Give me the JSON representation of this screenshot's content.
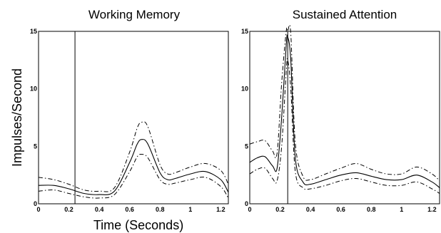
{
  "chart_data": [
    {
      "type": "line",
      "title": "Working Memory",
      "xlabel": "Time (Seconds)",
      "ylabel": "Impulses/Second",
      "xlim": [
        0,
        1.25
      ],
      "ylim": [
        0,
        15
      ],
      "x_ticks": [
        "0",
        "0.2",
        "0.4",
        "0.6",
        "0.8",
        "1",
        "1.2"
      ],
      "y_ticks": [
        "0",
        "5",
        "10",
        "15"
      ],
      "event_marker_x": 0.24,
      "series": [
        {
          "role": "mean",
          "x": [
            0,
            0.1,
            0.2,
            0.3,
            0.4,
            0.5,
            0.6,
            0.65,
            0.68,
            0.72,
            0.8,
            0.85,
            0.9,
            1.0,
            1.1,
            1.2,
            1.25
          ],
          "y": [
            1.6,
            1.6,
            1.3,
            0.9,
            0.8,
            1.1,
            3.6,
            5.2,
            5.6,
            5.2,
            2.7,
            2.1,
            2.2,
            2.6,
            2.8,
            2.1,
            1.0
          ]
        },
        {
          "role": "upper",
          "x": [
            0,
            0.1,
            0.2,
            0.3,
            0.4,
            0.5,
            0.6,
            0.65,
            0.68,
            0.72,
            0.8,
            0.85,
            0.9,
            1.0,
            1.1,
            1.2,
            1.25
          ],
          "y": [
            2.3,
            2.1,
            1.7,
            1.2,
            1.1,
            1.4,
            4.5,
            6.6,
            7.1,
            6.7,
            3.4,
            2.6,
            2.7,
            3.2,
            3.5,
            2.9,
            1.7
          ]
        },
        {
          "role": "lower",
          "x": [
            0,
            0.1,
            0.2,
            0.3,
            0.4,
            0.5,
            0.6,
            0.65,
            0.68,
            0.72,
            0.8,
            0.85,
            0.9,
            1.0,
            1.1,
            1.2,
            1.25
          ],
          "y": [
            1.1,
            1.2,
            0.9,
            0.6,
            0.5,
            0.8,
            2.8,
            4.1,
            4.3,
            4.0,
            2.1,
            1.7,
            1.8,
            2.1,
            2.3,
            1.5,
            0.5
          ]
        }
      ]
    },
    {
      "type": "line",
      "title": "Sustained Attention",
      "xlabel": "",
      "ylabel": "",
      "xlim": [
        0,
        1.25
      ],
      "ylim": [
        0,
        15
      ],
      "x_ticks": [
        "0",
        "0.2",
        "0.4",
        "0.6",
        "0.8",
        "1",
        "1.2"
      ],
      "y_ticks": [
        "0",
        "5",
        "10",
        "15"
      ],
      "event_marker_x": 0.25,
      "series": [
        {
          "role": "mean",
          "x": [
            0,
            0.05,
            0.1,
            0.15,
            0.18,
            0.21,
            0.24,
            0.25,
            0.27,
            0.3,
            0.35,
            0.4,
            0.5,
            0.6,
            0.7,
            0.8,
            0.9,
            1.0,
            1.1,
            1.2,
            1.25
          ],
          "y": [
            3.6,
            4.0,
            4.1,
            3.3,
            3.1,
            7.5,
            13.8,
            14.5,
            12.5,
            4.0,
            1.9,
            1.7,
            2.1,
            2.5,
            2.7,
            2.4,
            2.1,
            2.1,
            2.5,
            1.9,
            1.4
          ]
        },
        {
          "role": "upper",
          "x": [
            0,
            0.05,
            0.1,
            0.15,
            0.18,
            0.21,
            0.24,
            0.25,
            0.27,
            0.3,
            0.35,
            0.4,
            0.5,
            0.6,
            0.7,
            0.8,
            0.9,
            1.0,
            1.1,
            1.2,
            1.25
          ],
          "y": [
            5.2,
            5.4,
            5.5,
            4.6,
            4.4,
            10.5,
            15.0,
            15.0,
            14.8,
            5.3,
            2.4,
            2.1,
            2.6,
            3.1,
            3.5,
            3.0,
            2.6,
            2.6,
            3.2,
            2.6,
            2.0
          ]
        },
        {
          "role": "lower",
          "x": [
            0,
            0.05,
            0.1,
            0.15,
            0.18,
            0.21,
            0.24,
            0.25,
            0.27,
            0.3,
            0.35,
            0.4,
            0.5,
            0.6,
            0.7,
            0.8,
            0.9,
            1.0,
            1.1,
            1.2,
            1.25
          ],
          "y": [
            2.6,
            3.0,
            3.1,
            2.2,
            2.0,
            5.0,
            11.5,
            12.5,
            10.0,
            2.8,
            1.4,
            1.3,
            1.6,
            2.0,
            2.2,
            1.9,
            1.6,
            1.6,
            1.9,
            1.3,
            0.9
          ]
        }
      ]
    }
  ]
}
